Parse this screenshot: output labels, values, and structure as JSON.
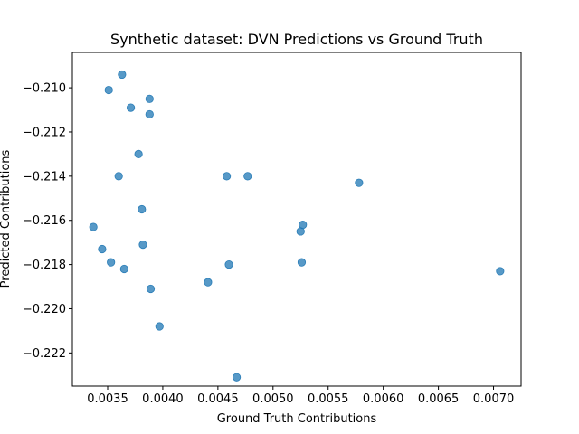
{
  "chart_data": {
    "type": "scatter",
    "title": "Synthetic dataset: DVN Predictions vs Ground Truth",
    "xlabel": "Ground Truth Contributions",
    "ylabel": "Predicted Contributions",
    "xlim": [
      0.00318,
      0.00725
    ],
    "ylim": [
      -0.2235,
      -0.2084
    ],
    "xticks": [
      0.0035,
      0.004,
      0.0045,
      0.005,
      0.0055,
      0.006,
      0.0065,
      0.007
    ],
    "xtick_labels": [
      "0.0035",
      "0.0040",
      "0.0045",
      "0.0050",
      "0.0055",
      "0.0060",
      "0.0065",
      "0.0070"
    ],
    "yticks": [
      -0.21,
      -0.212,
      -0.214,
      -0.216,
      -0.218,
      -0.22,
      -0.222
    ],
    "ytick_labels": [
      "−0.210",
      "−0.212",
      "−0.214",
      "−0.216",
      "−0.218",
      "−0.220",
      "−0.222"
    ],
    "grid": false,
    "marker_color": "#1f77b4",
    "points": [
      {
        "x": 0.00363,
        "y": -0.2094
      },
      {
        "x": 0.00351,
        "y": -0.2101
      },
      {
        "x": 0.00388,
        "y": -0.2105
      },
      {
        "x": 0.00371,
        "y": -0.2109
      },
      {
        "x": 0.00388,
        "y": -0.2112
      },
      {
        "x": 0.00378,
        "y": -0.213
      },
      {
        "x": 0.0036,
        "y": -0.214
      },
      {
        "x": 0.00458,
        "y": -0.214
      },
      {
        "x": 0.00477,
        "y": -0.214
      },
      {
        "x": 0.00578,
        "y": -0.2143
      },
      {
        "x": 0.00381,
        "y": -0.2155
      },
      {
        "x": 0.00337,
        "y": -0.2163
      },
      {
        "x": 0.00527,
        "y": -0.2162
      },
      {
        "x": 0.00525,
        "y": -0.2165
      },
      {
        "x": 0.00382,
        "y": -0.2171
      },
      {
        "x": 0.00345,
        "y": -0.2173
      },
      {
        "x": 0.00353,
        "y": -0.2179
      },
      {
        "x": 0.0046,
        "y": -0.218
      },
      {
        "x": 0.00526,
        "y": -0.2179
      },
      {
        "x": 0.00365,
        "y": -0.2182
      },
      {
        "x": 0.00706,
        "y": -0.2183
      },
      {
        "x": 0.00441,
        "y": -0.2188
      },
      {
        "x": 0.00389,
        "y": -0.2191
      },
      {
        "x": 0.00397,
        "y": -0.2208
      },
      {
        "x": 0.00467,
        "y": -0.2231
      }
    ]
  }
}
